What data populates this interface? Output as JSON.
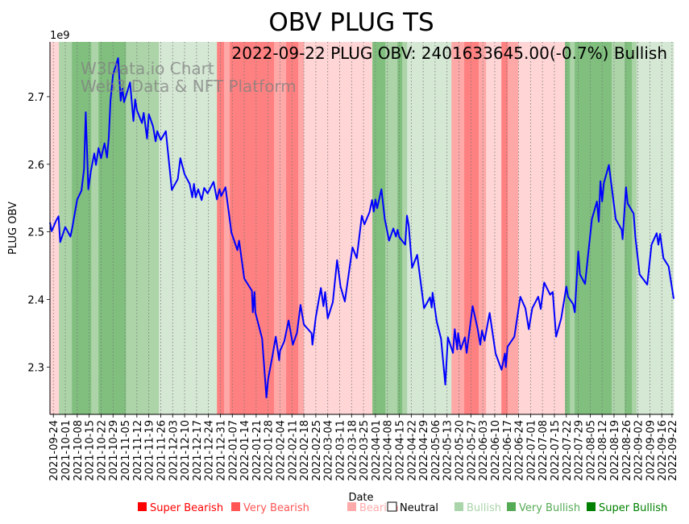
{
  "chart_data": {
    "type": "line",
    "title": "OBV PLUG TS",
    "annotation": "2022-09-22 PLUG OBV: 2401633645.00(-0.7%) Bullish",
    "watermark": [
      "W3Data.io Chart",
      "Web3 Data & NFT Platform"
    ],
    "xlabel": "Date",
    "ylabel": "PLUG OBV",
    "y_offset_label": "1e9",
    "x_unit": "days since 2021-09-24",
    "xlim": [
      -2,
      364
    ],
    "ylim": [
      2.23,
      2.781
    ],
    "yticks": [
      {
        "value": 2.3,
        "label": "2.3"
      },
      {
        "value": 2.4,
        "label": "2.4"
      },
      {
        "value": 2.5,
        "label": "2.5"
      },
      {
        "value": 2.6,
        "label": "2.6"
      },
      {
        "value": 2.7,
        "label": "2.7"
      }
    ],
    "xticks": [
      "2021-09-24",
      "2021-10-01",
      "2021-10-08",
      "2021-10-15",
      "2021-10-22",
      "2021-10-29",
      "2021-11-05",
      "2021-11-12",
      "2021-11-19",
      "2021-11-26",
      "2021-12-03",
      "2021-12-10",
      "2021-12-17",
      "2021-12-24",
      "2021-12-31",
      "2022-01-07",
      "2022-01-14",
      "2022-01-21",
      "2022-01-28",
      "2022-02-04",
      "2022-02-11",
      "2022-02-18",
      "2022-02-25",
      "2022-03-04",
      "2022-03-11",
      "2022-03-18",
      "2022-03-25",
      "2022-04-01",
      "2022-04-08",
      "2022-04-15",
      "2022-04-22",
      "2022-04-29",
      "2022-05-06",
      "2022-05-13",
      "2022-05-20",
      "2022-05-27",
      "2022-06-03",
      "2022-06-10",
      "2022-06-17",
      "2022-06-24",
      "2022-07-01",
      "2022-07-08",
      "2022-07-15",
      "2022-07-22",
      "2022-07-29",
      "2022-08-05",
      "2022-08-12",
      "2022-08-19",
      "2022-08-26",
      "2022-09-02",
      "2022-09-09",
      "2022-09-16",
      "2022-09-22"
    ],
    "xtick_days_last": 363,
    "series": [
      {
        "name": "PLUG OBV (1e9)",
        "color": "#0000ff",
        "x": [
          -2,
          -1,
          1.5,
          3,
          4,
          7,
          10,
          11,
          14,
          16.5,
          18,
          19,
          20.5,
          22,
          24,
          25,
          26.5,
          28,
          30,
          31.5,
          32.5,
          33.5,
          35,
          38,
          39.5,
          40.5,
          41.5,
          45,
          47,
          48,
          49,
          52,
          53,
          55,
          56,
          58.5,
          60,
          61,
          63,
          66,
          69.5,
          73,
          74.5,
          77,
          80,
          81.5,
          82.5,
          83.5,
          85,
          87,
          88.5,
          90.5,
          94,
          96,
          97.5,
          98.5,
          101,
          104.5,
          108,
          109,
          112,
          116.5,
          117,
          118,
          118.5,
          122.5,
          125,
          126,
          128.5,
          130.5,
          132.5,
          133,
          135.5,
          138,
          140.5,
          143,
          145,
          147,
          151.5,
          152,
          154,
          157,
          158.5,
          159.5,
          161,
          164,
          166.5,
          168.5,
          171,
          175.5,
          178,
          181,
          182.5,
          185.5,
          187,
          188,
          189,
          190,
          192.5,
          194.5,
          197,
          199.5,
          201,
          202,
          203,
          206.5,
          207.5,
          208.5,
          210.5,
          213.5,
          217.5,
          221,
          222,
          222.5,
          225,
          227.5,
          230,
          231.5,
          234.5,
          235.5,
          237,
          237.5,
          239,
          241.5,
          242.5,
          246,
          249,
          250.5,
          251.5,
          253,
          256,
          259.5,
          263,
          265,
          265.5,
          266.5,
          270.5,
          274,
          277,
          279,
          281,
          284.5,
          286,
          288,
          291.5,
          293,
          295,
          298,
          301,
          302,
          305,
          306,
          308,
          309,
          312,
          316,
          319,
          320,
          321,
          322,
          323,
          326,
          330,
          333.5,
          334,
          336,
          337,
          340.5,
          341.5,
          344,
          348.5,
          351,
          354,
          355,
          356,
          358,
          361,
          364
        ],
        "values": [
          2.514,
          2.501,
          2.516,
          2.523,
          2.485,
          2.507,
          2.493,
          2.505,
          2.548,
          2.561,
          2.593,
          2.677,
          2.563,
          2.59,
          2.616,
          2.599,
          2.624,
          2.609,
          2.631,
          2.61,
          2.64,
          2.694,
          2.732,
          2.757,
          2.694,
          2.712,
          2.692,
          2.721,
          2.664,
          2.696,
          2.68,
          2.661,
          2.676,
          2.638,
          2.674,
          2.656,
          2.634,
          2.649,
          2.636,
          2.649,
          2.562,
          2.578,
          2.609,
          2.585,
          2.571,
          2.551,
          2.571,
          2.551,
          2.563,
          2.547,
          2.565,
          2.557,
          2.574,
          2.548,
          2.563,
          2.553,
          2.566,
          2.499,
          2.473,
          2.487,
          2.431,
          2.413,
          2.381,
          2.411,
          2.381,
          2.342,
          2.255,
          2.282,
          2.316,
          2.345,
          2.31,
          2.324,
          2.338,
          2.369,
          2.333,
          2.351,
          2.392,
          2.363,
          2.35,
          2.333,
          2.374,
          2.417,
          2.39,
          2.411,
          2.372,
          2.396,
          2.458,
          2.419,
          2.397,
          2.477,
          2.461,
          2.524,
          2.511,
          2.529,
          2.547,
          2.53,
          2.548,
          2.535,
          2.563,
          2.519,
          2.487,
          2.505,
          2.493,
          2.503,
          2.492,
          2.481,
          2.524,
          2.509,
          2.447,
          2.466,
          2.387,
          2.403,
          2.388,
          2.41,
          2.367,
          2.342,
          2.274,
          2.344,
          2.321,
          2.356,
          2.326,
          2.35,
          2.326,
          2.344,
          2.321,
          2.39,
          2.356,
          2.333,
          2.354,
          2.339,
          2.38,
          2.32,
          2.296,
          2.32,
          2.3,
          2.33,
          2.345,
          2.404,
          2.387,
          2.356,
          2.387,
          2.404,
          2.386,
          2.425,
          2.407,
          2.411,
          2.345,
          2.372,
          2.419,
          2.404,
          2.393,
          2.381,
          2.471,
          2.437,
          2.423,
          2.519,
          2.545,
          2.515,
          2.575,
          2.545,
          2.572,
          2.599,
          2.519,
          2.503,
          2.489,
          2.566,
          2.542,
          2.527,
          2.493,
          2.437,
          2.422,
          2.481,
          2.498,
          2.481,
          2.497,
          2.461,
          2.449,
          2.401
        ]
      }
    ],
    "sentiment_bands": [
      {
        "from": -2,
        "to": 3.3,
        "level": "bearish"
      },
      {
        "from": 3.3,
        "to": 10.9,
        "level": "very_bullish"
      },
      {
        "from": 10.9,
        "to": 22.2,
        "level": "super_bullish"
      },
      {
        "from": 22.2,
        "to": 26.5,
        "level": "very_bullish"
      },
      {
        "from": 26.5,
        "to": 42.6,
        "level": "super_bullish"
      },
      {
        "from": 42.6,
        "to": 61.9,
        "level": "very_bullish"
      },
      {
        "from": 61.9,
        "to": 96.0,
        "level": "bullish"
      },
      {
        "from": 96.0,
        "to": 100.2,
        "level": "super_bearish"
      },
      {
        "from": 100.2,
        "to": 103.5,
        "level": "very_bearish"
      },
      {
        "from": 103.5,
        "to": 129.5,
        "level": "super_bearish"
      },
      {
        "from": 129.5,
        "to": 136.6,
        "level": "very_bearish"
      },
      {
        "from": 136.6,
        "to": 143.7,
        "level": "super_bearish"
      },
      {
        "from": 143.7,
        "to": 147.0,
        "level": "very_bearish"
      },
      {
        "from": 147.0,
        "to": 187.2,
        "level": "bearish"
      },
      {
        "from": 187.2,
        "to": 194.8,
        "level": "super_bullish"
      },
      {
        "from": 194.8,
        "to": 201.9,
        "level": "very_bullish"
      },
      {
        "from": 201.9,
        "to": 204.7,
        "level": "super_bullish"
      },
      {
        "from": 204.7,
        "to": 207.6,
        "level": "very_bullish"
      },
      {
        "from": 207.6,
        "to": 233.6,
        "level": "bullish"
      },
      {
        "from": 233.6,
        "to": 241.1,
        "level": "very_bearish"
      },
      {
        "from": 241.1,
        "to": 249.6,
        "level": "super_bearish"
      },
      {
        "from": 249.6,
        "to": 253.9,
        "level": "very_bearish"
      },
      {
        "from": 253.9,
        "to": 262.9,
        "level": "bearish"
      },
      {
        "from": 262.9,
        "to": 266.7,
        "level": "super_bearish"
      },
      {
        "from": 266.7,
        "to": 272.8,
        "level": "very_bearish"
      },
      {
        "from": 272.8,
        "to": 300.2,
        "level": "bearish"
      },
      {
        "from": 300.2,
        "to": 303.1,
        "level": "super_bullish"
      },
      {
        "from": 303.1,
        "to": 305.9,
        "level": "very_bullish"
      },
      {
        "from": 305.9,
        "to": 327.6,
        "level": "super_bullish"
      },
      {
        "from": 327.6,
        "to": 335.2,
        "level": "very_bullish"
      },
      {
        "from": 335.2,
        "to": 339.5,
        "level": "super_bullish"
      },
      {
        "from": 339.5,
        "to": 342.3,
        "level": "very_bullish"
      },
      {
        "from": 342.3,
        "to": 364,
        "level": "bullish"
      }
    ],
    "band_colors": {
      "super_bearish": "#ff8080",
      "very_bearish": "#ffa8a8",
      "bearish": "#ffd5d5",
      "bullish": "#d5e8d4",
      "very_bullish": "#acd4a8",
      "super_bullish": "#80bf7e"
    },
    "legend": [
      {
        "label": "Super Bearish",
        "color": "#ff0000",
        "text_color": "#ff0000"
      },
      {
        "label": "Very Bearish",
        "color": "#ff5555",
        "text_color": "#ff5555"
      },
      {
        "label": "Bearish",
        "color": "#ffaaaa",
        "text_color": "#ffaaaa"
      },
      {
        "label": "Neutral",
        "color": "#ffffff",
        "text_color": "#000000"
      },
      {
        "label": "Bullish",
        "color": "#aad4aa",
        "text_color": "#aad4aa"
      },
      {
        "label": "Very Bullish",
        "color": "#55aa55",
        "text_color": "#55aa55"
      },
      {
        "label": "Super Bullish",
        "color": "#008000",
        "text_color": "#008000"
      }
    ],
    "legend_placement": "bottom-center",
    "grid": "vertical dotted"
  }
}
